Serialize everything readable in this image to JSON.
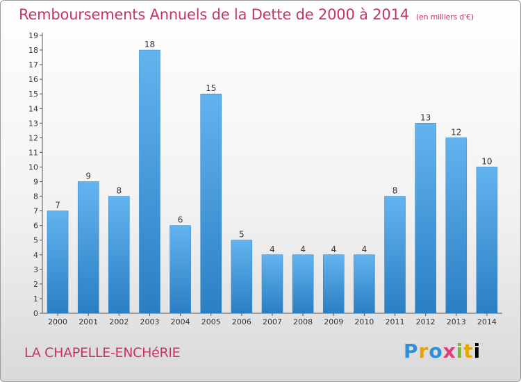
{
  "header": {
    "title": "Remboursements Annuels de la Dette de 2000 à 2014",
    "unit": "(en milliers d'€)"
  },
  "footer": {
    "place": "LA CHAPELLE-ENCHéRIE",
    "logo": [
      "P",
      "r",
      "o",
      "x",
      "i",
      "t",
      "i"
    ]
  },
  "colors": {
    "title": "#c8326a",
    "bar_top": "#63b3ef",
    "bar_bottom": "#2a7fc3"
  },
  "chart_data": {
    "type": "bar",
    "title": "Remboursements Annuels de la Dette de 2000 à 2014",
    "xlabel": "",
    "ylabel": "",
    "categories": [
      "2000",
      "2001",
      "2002",
      "2003",
      "2004",
      "2005",
      "2006",
      "2007",
      "2008",
      "2009",
      "2010",
      "2011",
      "2012",
      "2013",
      "2014"
    ],
    "values": [
      7,
      9,
      8,
      18,
      6,
      15,
      5,
      4,
      4,
      4,
      4,
      8,
      13,
      12,
      10
    ],
    "ylim": [
      0,
      19
    ],
    "yticks": [
      0,
      1,
      2,
      3,
      4,
      5,
      6,
      7,
      8,
      9,
      10,
      11,
      12,
      13,
      14,
      15,
      16,
      17,
      18,
      19
    ],
    "grid": false
  }
}
